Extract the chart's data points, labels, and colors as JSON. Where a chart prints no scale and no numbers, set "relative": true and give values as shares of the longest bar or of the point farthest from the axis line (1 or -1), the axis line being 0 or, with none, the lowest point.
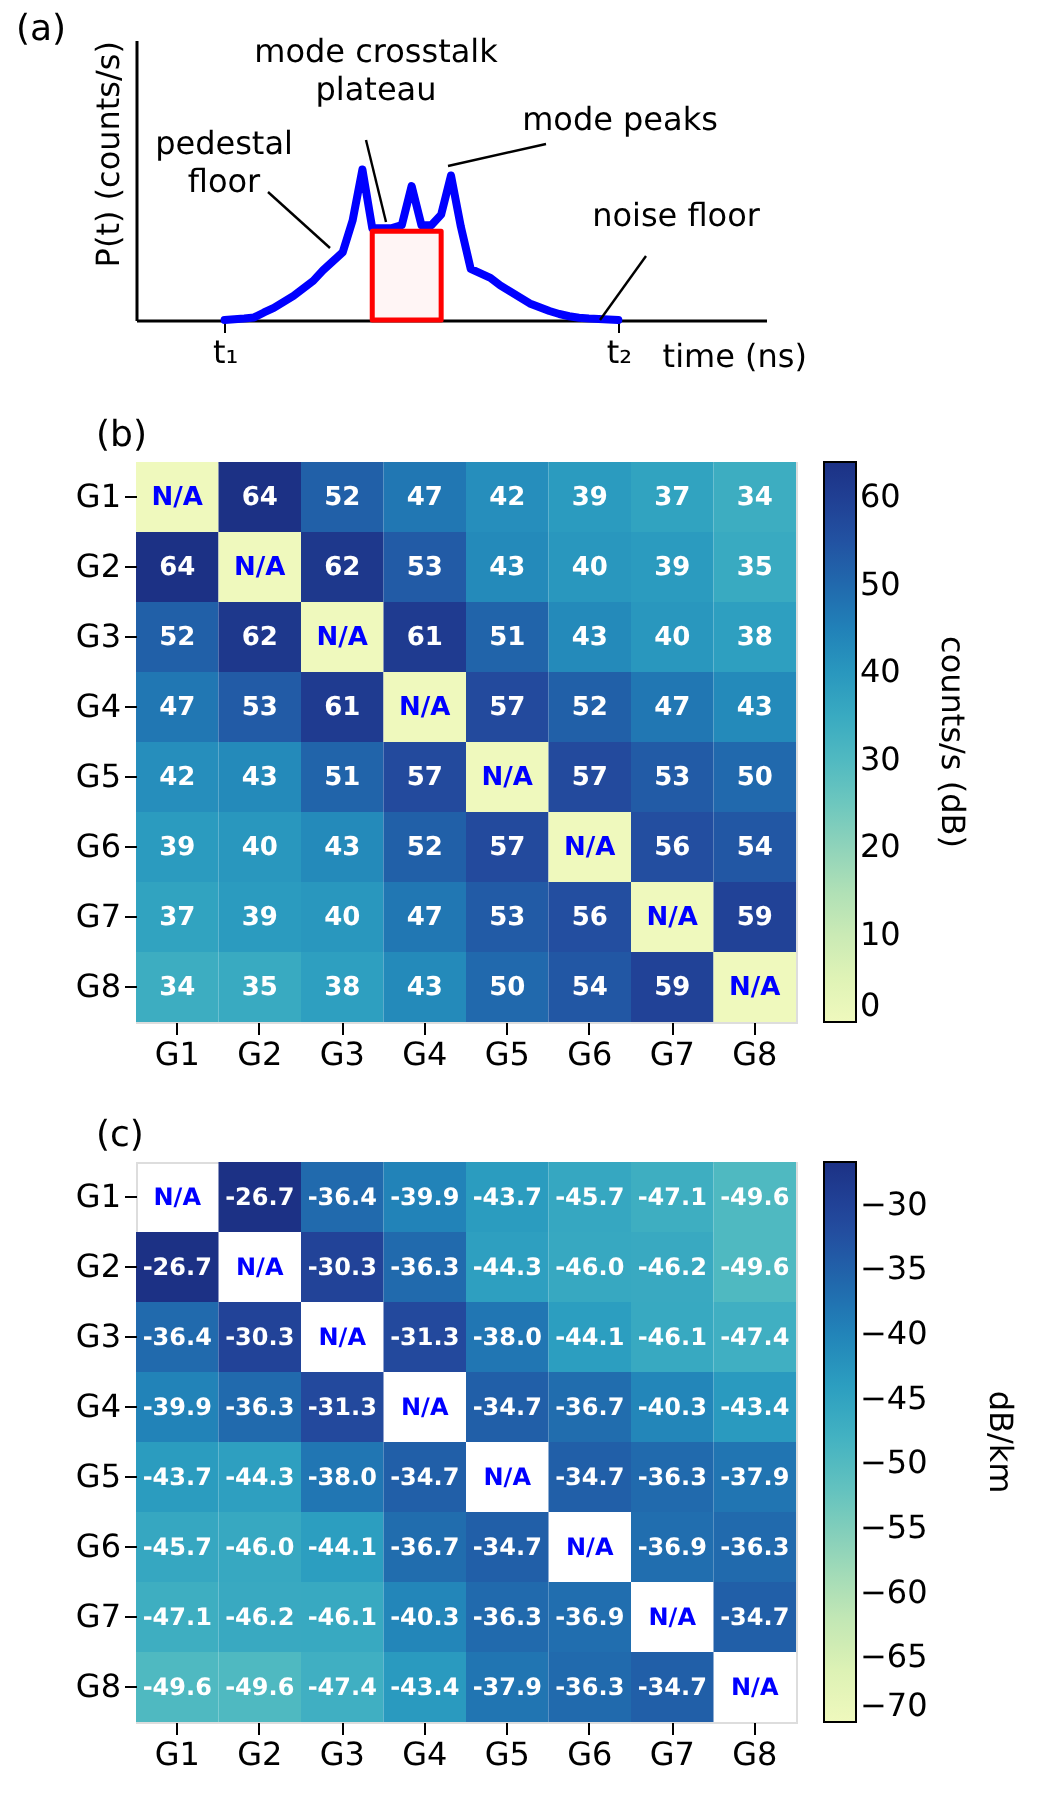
{
  "chart_data": [
    {
      "type": "line",
      "title": "(a)",
      "xlabel": "time (ns)",
      "ylabel": "P(t) (counts/s)",
      "relative": true,
      "tick_labels": "x",
      "categories": [
        null,
        null,
        null,
        null,
        null,
        null,
        null,
        null,
        null,
        "t₁",
        null,
        null,
        null,
        null,
        null,
        null,
        null,
        null,
        null,
        null,
        null,
        null,
        null,
        null,
        null,
        null,
        null,
        null,
        null,
        null,
        null,
        null,
        null,
        null,
        null,
        null,
        null,
        null,
        null,
        null,
        null,
        null,
        null,
        null,
        null,
        null,
        null,
        null,
        null,
        "t₂",
        null,
        null,
        null,
        null,
        null,
        null,
        null,
        null,
        null,
        null,
        null,
        null,
        null,
        null,
        null
      ],
      "series": [
        {
          "color": "#0000ff",
          "values": [
            null,
            null,
            null,
            null,
            null,
            null,
            null,
            null,
            null,
            0,
            0.005,
            0.01,
            0.017,
            0.05,
            0.08,
            0.12,
            0.16,
            0.21,
            0.26,
            0.33,
            0.39,
            0.45,
            0.66,
            1,
            0.61,
            0.61,
            0.61,
            0.63,
            0.89,
            0.63,
            0.63,
            0.7,
            0.96,
            0.62,
            0.34,
            0.31,
            0.28,
            0.23,
            0.19,
            0.15,
            0.11,
            0.085,
            0.06,
            0.04,
            0.025,
            0.015,
            0.01,
            0.007,
            0.003,
            0,
            null,
            null,
            null,
            null,
            null,
            null,
            null,
            null,
            null,
            null,
            null,
            null,
            null,
            null,
            null
          ]
        },
        {
          "type": "area",
          "color": "#ff0000",
          "values": [
            null,
            null,
            null,
            null,
            null,
            null,
            null,
            null,
            null,
            null,
            null,
            null,
            null,
            null,
            null,
            null,
            null,
            null,
            null,
            null,
            null,
            null,
            null,
            null,
            0.59,
            0.59,
            0.59,
            0.59,
            0.59,
            0.59,
            0.59,
            0.59,
            null,
            null,
            null,
            null,
            null,
            null,
            null,
            null,
            null,
            null,
            null,
            null,
            null,
            null,
            null,
            null,
            null,
            null,
            null,
            null,
            null,
            null,
            null,
            null,
            null,
            null,
            null,
            null,
            null,
            null,
            null,
            null,
            null
          ]
        }
      ],
      "annotations": [
        "pedestal floor",
        "mode crosstalk plateau",
        "mode peaks",
        "noise floor"
      ]
    },
    {
      "type": "heatmap",
      "title": "(b)",
      "clabel": "counts/s (dB)",
      "clim": [
        0,
        64
      ],
      "cticks": [
        0,
        10,
        20,
        30,
        40,
        50,
        60
      ],
      "categories": [
        "G1",
        "G2",
        "G3",
        "G4",
        "G5",
        "G6",
        "G7",
        "G8"
      ],
      "y_categories": [
        "G1",
        "G2",
        "G3",
        "G4",
        "G5",
        "G6",
        "G7",
        "G8"
      ],
      "cells": [
        [
          0,
          64,
          52,
          47,
          42,
          39,
          37,
          34
        ],
        [
          64,
          0,
          62,
          53,
          43,
          40,
          39,
          35
        ],
        [
          52,
          62,
          0,
          61,
          51,
          43,
          40,
          38
        ],
        [
          47,
          53,
          61,
          0,
          57,
          52,
          47,
          43
        ],
        [
          42,
          43,
          51,
          57,
          0,
          57,
          53,
          50
        ],
        [
          39,
          40,
          43,
          52,
          57,
          0,
          56,
          54
        ],
        [
          37,
          39,
          40,
          47,
          53,
          56,
          0,
          59
        ],
        [
          34,
          35,
          38,
          43,
          50,
          54,
          59,
          0
        ]
      ],
      "cell_labels": [
        [
          "N/A",
          "64",
          "52",
          "47",
          "42",
          "39",
          "37",
          "34"
        ],
        [
          "64",
          "N/A",
          "62",
          "53",
          "43",
          "40",
          "39",
          "35"
        ],
        [
          "52",
          "62",
          "N/A",
          "61",
          "51",
          "43",
          "40",
          "38"
        ],
        [
          "47",
          "53",
          "61",
          "N/A",
          "57",
          "52",
          "47",
          "43"
        ],
        [
          "42",
          "43",
          "51",
          "57",
          "N/A",
          "57",
          "53",
          "50"
        ],
        [
          "39",
          "40",
          "43",
          "52",
          "57",
          "N/A",
          "56",
          "54"
        ],
        [
          "37",
          "39",
          "40",
          "47",
          "53",
          "56",
          "N/A",
          "59"
        ],
        [
          "34",
          "35",
          "38",
          "43",
          "50",
          "54",
          "59",
          "N/A"
        ]
      ]
    },
    {
      "type": "heatmap",
      "title": "(c)",
      "clabel": "dB/km",
      "clim": [
        -70,
        -26.7
      ],
      "cticks": [
        {
          "value": -70,
          "label": "−70"
        },
        {
          "value": -65,
          "label": "−65"
        },
        {
          "value": -60,
          "label": "−60"
        },
        {
          "value": -55,
          "label": "−55"
        },
        {
          "value": -50,
          "label": "−50"
        },
        {
          "value": -45,
          "label": "−45"
        },
        {
          "value": -40,
          "label": "−40"
        },
        {
          "value": -35,
          "label": "−35"
        },
        {
          "value": -30,
          "label": "−30"
        }
      ],
      "categories": [
        "G1",
        "G2",
        "G3",
        "G4",
        "G5",
        "G6",
        "G7",
        "G8"
      ],
      "y_categories": [
        "G1",
        "G2",
        "G3",
        "G4",
        "G5",
        "G6",
        "G7",
        "G8"
      ],
      "cells": [
        [
          null,
          -26.7,
          -36.4,
          -39.9,
          -43.7,
          -45.7,
          -47.1,
          -49.6
        ],
        [
          -26.7,
          null,
          -30.3,
          -36.3,
          -44.3,
          -46.0,
          -46.2,
          -49.6
        ],
        [
          -36.4,
          -30.3,
          null,
          -31.3,
          -38.0,
          -44.1,
          -46.1,
          -47.4
        ],
        [
          -39.9,
          -36.3,
          -31.3,
          null,
          -34.7,
          -36.7,
          -40.3,
          -43.4
        ],
        [
          -43.7,
          -44.3,
          -38.0,
          -34.7,
          null,
          -34.7,
          -36.3,
          -37.9
        ],
        [
          -45.7,
          -46.0,
          -44.1,
          -36.7,
          -34.7,
          null,
          -36.9,
          -36.3
        ],
        [
          -47.1,
          -46.2,
          -46.1,
          -40.3,
          -36.3,
          -36.9,
          null,
          -34.7
        ],
        [
          -49.6,
          -49.6,
          -47.4,
          -43.4,
          -37.9,
          -36.3,
          -34.7,
          null
        ]
      ],
      "cell_labels": [
        [
          "N/A",
          "-26.7",
          "-36.4",
          "-39.9",
          "-43.7",
          "-45.7",
          "-47.1",
          "-49.6"
        ],
        [
          "-26.7",
          "N/A",
          "-30.3",
          "-36.3",
          "-44.3",
          "-46.0",
          "-46.2",
          "-49.6"
        ],
        [
          "-36.4",
          "-30.3",
          "N/A",
          "-31.3",
          "-38.0",
          "-44.1",
          "-46.1",
          "-47.4"
        ],
        [
          "-39.9",
          "-36.3",
          "-31.3",
          "N/A",
          "-34.7",
          "-36.7",
          "-40.3",
          "-43.4"
        ],
        [
          "-43.7",
          "-44.3",
          "-38.0",
          "-34.7",
          "N/A",
          "-34.7",
          "-36.3",
          "-37.9"
        ],
        [
          "-45.7",
          "-46.0",
          "-44.1",
          "-36.7",
          "-34.7",
          "N/A",
          "-36.9",
          "-36.3"
        ],
        [
          "-47.1",
          "-46.2",
          "-46.1",
          "-40.3",
          "-36.3",
          "-36.9",
          "N/A",
          "-34.7"
        ],
        [
          "-49.6",
          "-49.6",
          "-47.4",
          "-43.4",
          "-37.9",
          "-36.3",
          "-34.7",
          "N/A"
        ]
      ]
    }
  ]
}
